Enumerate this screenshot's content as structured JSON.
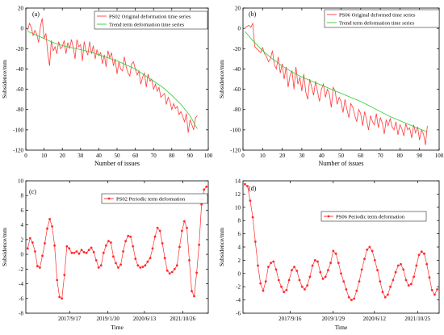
{
  "chart_data": [
    {
      "panel": "(a)",
      "type": "line",
      "xlabel": "Number of issues",
      "ylabel": "Subsidence/mm",
      "xlim": [
        0,
        100
      ],
      "ylim": [
        -120,
        20
      ],
      "xticks": [
        0,
        10,
        20,
        30,
        40,
        50,
        60,
        70,
        80,
        90,
        100
      ],
      "yticks": [
        20,
        0,
        -20,
        -40,
        -60,
        -80,
        -100,
        -120
      ],
      "legend_position": "top-right",
      "series": [
        {
          "name": "PS02 Original deformation time series",
          "color": "#ff3b3b",
          "x": [
            1,
            2,
            3,
            4,
            5,
            6,
            7,
            8,
            9,
            10,
            11,
            12,
            13,
            14,
            15,
            16,
            17,
            18,
            19,
            20,
            21,
            22,
            23,
            24,
            25,
            26,
            27,
            28,
            29,
            30,
            31,
            32,
            33,
            34,
            35,
            36,
            37,
            38,
            39,
            40,
            41,
            42,
            43,
            44,
            45,
            46,
            47,
            48,
            49,
            50,
            51,
            52,
            53,
            54,
            55,
            56,
            57,
            58,
            59,
            60,
            61,
            62,
            63,
            64,
            65,
            66,
            67,
            68,
            69,
            70,
            71,
            72,
            73,
            74,
            75,
            76,
            77,
            78,
            79,
            80,
            81,
            82,
            83,
            84,
            85,
            86,
            87,
            88,
            89,
            90,
            91,
            92,
            93,
            94
          ],
          "y": [
            -2,
            5,
            1,
            -7,
            -2,
            -6,
            -14,
            2,
            10,
            -10,
            -5,
            -24,
            -37,
            -12,
            -22,
            -18,
            -25,
            -13,
            -20,
            -18,
            -12,
            -25,
            -14,
            -20,
            -11,
            -19,
            -30,
            -11,
            -18,
            -16,
            -32,
            -13,
            -22,
            -26,
            -13,
            -25,
            -17,
            -30,
            -21,
            -27,
            -24,
            -35,
            -26,
            -38,
            -22,
            -29,
            -24,
            -37,
            -30,
            -45,
            -33,
            -40,
            -42,
            -28,
            -38,
            -44,
            -47,
            -35,
            -33,
            -40,
            -46,
            -42,
            -55,
            -48,
            -44,
            -58,
            -45,
            -52,
            -50,
            -60,
            -55,
            -62,
            -58,
            -68,
            -66,
            -64,
            -75,
            -68,
            -72,
            -80,
            -74,
            -79,
            -77,
            -85,
            -82,
            -87,
            -92,
            -84,
            -103,
            -90,
            -95,
            -100,
            -88,
            -86
          ]
        },
        {
          "name": "Trend term deformation time series",
          "color": "#2ecc2e",
          "x": [
            1,
            5,
            10,
            15,
            20,
            25,
            30,
            35,
            40,
            45,
            50,
            55,
            60,
            65,
            70,
            75,
            80,
            85,
            90,
            94
          ],
          "y": [
            -3,
            -6,
            -10,
            -14,
            -17,
            -19,
            -21,
            -23,
            -26,
            -29,
            -32,
            -36,
            -40,
            -46,
            -52,
            -58,
            -66,
            -75,
            -86,
            -99
          ]
        }
      ]
    },
    {
      "panel": "(b)",
      "type": "line",
      "xlabel": "Number of issues",
      "ylabel": "Subsidence/mm",
      "xlim": [
        0,
        100
      ],
      "ylim": [
        -120,
        20
      ],
      "xticks": [
        0,
        10,
        20,
        30,
        40,
        50,
        60,
        70,
        80,
        90,
        100
      ],
      "yticks": [
        20,
        0,
        -20,
        -40,
        -60,
        -80,
        -100,
        -120
      ],
      "legend_position": "top-right",
      "series": [
        {
          "name": "PS06 Original deformed time series",
          "color": "#ff3b3b",
          "x": [
            1,
            2,
            3,
            4,
            5,
            6,
            7,
            8,
            9,
            10,
            11,
            12,
            13,
            14,
            15,
            16,
            17,
            18,
            19,
            20,
            21,
            22,
            23,
            24,
            25,
            26,
            27,
            28,
            29,
            30,
            31,
            32,
            33,
            34,
            35,
            36,
            37,
            38,
            39,
            40,
            41,
            42,
            43,
            44,
            45,
            46,
            47,
            48,
            49,
            50,
            51,
            52,
            53,
            54,
            55,
            56,
            57,
            58,
            59,
            60,
            61,
            62,
            63,
            64,
            65,
            66,
            67,
            68,
            69,
            70,
            71,
            72,
            73,
            74,
            75,
            76,
            77,
            78,
            79,
            80,
            81,
            82,
            83,
            84,
            85,
            86,
            87,
            88,
            89,
            90,
            91,
            92,
            93,
            94
          ],
          "y": [
            0,
            2,
            3,
            1,
            5,
            -18,
            -20,
            -22,
            -24,
            -19,
            -25,
            -28,
            -33,
            -30,
            -22,
            -36,
            -40,
            -28,
            -44,
            -35,
            -50,
            -38,
            -58,
            -46,
            -42,
            -60,
            -38,
            -55,
            -48,
            -62,
            -45,
            -63,
            -70,
            -50,
            -58,
            -66,
            -52,
            -62,
            -72,
            -60,
            -55,
            -68,
            -60,
            -64,
            -78,
            -58,
            -62,
            -75,
            -68,
            -72,
            -83,
            -70,
            -80,
            -88,
            -74,
            -78,
            -86,
            -92,
            -80,
            -84,
            -96,
            -82,
            -90,
            -100,
            -86,
            -92,
            -95,
            -84,
            -98,
            -88,
            -93,
            -104,
            -90,
            -96,
            -89,
            -97,
            -100,
            -92,
            -105,
            -95,
            -99,
            -106,
            -94,
            -100,
            -98,
            -108,
            -95,
            -103,
            -97,
            -110,
            -100,
            -104,
            -115,
            -96
          ]
        },
        {
          "name": "Trend term deformation time series",
          "color": "#2ecc2e",
          "x": [
            1,
            5,
            10,
            15,
            20,
            25,
            30,
            35,
            40,
            45,
            50,
            55,
            60,
            65,
            70,
            75,
            80,
            85,
            90,
            94
          ],
          "y": [
            -3,
            -12,
            -22,
            -30,
            -37,
            -43,
            -48,
            -52,
            -56,
            -60,
            -64,
            -68,
            -72,
            -77,
            -82,
            -87,
            -91,
            -95,
            -99,
            -102
          ]
        }
      ]
    },
    {
      "panel": "(c)",
      "type": "line",
      "xlabel": "Time",
      "ylabel": "Subsidence/mm",
      "xlim": [
        0,
        100
      ],
      "ylim": [
        -8,
        10
      ],
      "xticks": [
        24,
        45,
        65,
        86
      ],
      "xticklabels": [
        "2017/9/17",
        "2019/1/30",
        "2020/6/13",
        "2021/10/26"
      ],
      "yticks": [
        10,
        8,
        6,
        4,
        2,
        0,
        -2,
        -4,
        -6,
        -8
      ],
      "legend_position": "top-right",
      "series": [
        {
          "name": "PS02 Periodic term deformation",
          "color": "#ff2a2a",
          "marker": "dot",
          "y": [
            0.8,
            2.2,
            1.6,
            0.4,
            -1.6,
            -1.8,
            -0.2,
            1.5,
            3.5,
            4.8,
            3.8,
            1.2,
            -3.5,
            -5.8,
            -6.0,
            -2.8,
            1.1,
            0.8,
            0.2,
            0.2,
            0.4,
            0.1,
            0.6,
            0.3,
            0.2,
            0.6,
            0.9,
            0.3,
            -0.8,
            -1.8,
            -1.5,
            0.2,
            1.2,
            1.8,
            1.6,
            -0.3,
            -1.2,
            -1.8,
            -1.4,
            0.4,
            1.8,
            2.5,
            2.4,
            1.1,
            -0.6,
            -1.5,
            -1.8,
            -1.7,
            -1.5,
            -1.0,
            -0.5,
            0.8,
            2.4,
            3.6,
            3.2,
            1.5,
            -0.5,
            -2.2,
            -2.6,
            -2.4,
            -2.0,
            -1.5,
            1.0,
            3.2,
            4.5,
            3.6,
            -0.8,
            -5.0,
            -5.7,
            -2.5,
            1.3,
            6.8,
            8.8,
            9.2
          ]
        }
      ]
    },
    {
      "panel": "(d)",
      "type": "line",
      "xlabel": "Time",
      "ylabel": "Subsidence/mm",
      "xlim": [
        0,
        100
      ],
      "ylim": [
        -6,
        14
      ],
      "xticks": [
        24,
        46,
        67,
        89
      ],
      "xticklabels": [
        "2017/9/16",
        "2019/1/29",
        "2020/6/12",
        "2021/10/25"
      ],
      "yticks": [
        14,
        12,
        10,
        8,
        6,
        4,
        2,
        0,
        -2,
        -4,
        -6
      ],
      "legend_position": "top-right",
      "series": [
        {
          "name": "PS06 Periodic term deformation",
          "color": "#ff2a2a",
          "marker": "dot",
          "y": [
            13.5,
            13.2,
            11.0,
            8.5,
            4.8,
            1.2,
            -1.5,
            -2.6,
            -1.2,
            1.0,
            1.6,
            1.8,
            0.6,
            -1.0,
            -2.0,
            -2.8,
            -2.5,
            -1.0,
            0.5,
            1.0,
            0.4,
            -1.0,
            -2.0,
            -2.4,
            -1.8,
            -0.5,
            1.2,
            2.0,
            1.8,
            0.2,
            -0.8,
            -0.5,
            0.5,
            1.6,
            3.4,
            3.0,
            1.6,
            0.0,
            -1.2,
            -2.4,
            -3.6,
            -4.0,
            -3.8,
            -2.6,
            -1.2,
            0.6,
            2.2,
            3.6,
            4.0,
            3.4,
            2.0,
            0.5,
            -1.2,
            -2.8,
            -3.6,
            -3.2,
            -2.0,
            -1.0,
            0.2,
            1.2,
            1.4,
            0.6,
            -1.0,
            -1.8,
            -1.6,
            -0.5,
            1.2,
            2.8,
            3.3,
            3.0,
            1.4,
            -0.6,
            -2.5,
            -3.2,
            -2.4
          ]
        }
      ]
    }
  ]
}
